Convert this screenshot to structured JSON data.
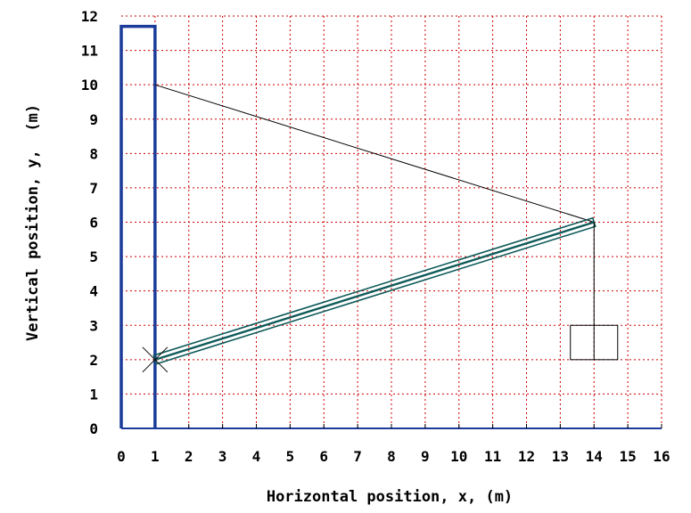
{
  "chart_data": {
    "type": "diagram",
    "xlabel": "Horizontal position, x, (m)",
    "ylabel": "Vertical position, y,  (m)",
    "xlim": [
      0,
      16
    ],
    "ylim": [
      0,
      12
    ],
    "xticks": [
      0,
      1,
      2,
      3,
      4,
      5,
      6,
      7,
      8,
      9,
      10,
      11,
      12,
      13,
      14,
      15,
      16
    ],
    "yticks": [
      0,
      1,
      2,
      3,
      4,
      5,
      6,
      7,
      8,
      9,
      10,
      11,
      12
    ],
    "grid": true,
    "colors": {
      "grid": "#cc0000",
      "wall": "#1a3b9a",
      "beam": "#0f5a5a",
      "cable": "#000000"
    },
    "wall": {
      "x": [
        0,
        1
      ],
      "top": 11.7
    },
    "beam": {
      "from": [
        1,
        2
      ],
      "to": [
        14,
        6
      ]
    },
    "cable": {
      "from": [
        1,
        10
      ],
      "to": [
        14,
        6
      ]
    },
    "hinge": [
      1,
      2
    ],
    "hanger": {
      "from": [
        14,
        6
      ],
      "to": [
        14,
        2
      ]
    },
    "box": {
      "x": [
        13.3,
        14.7
      ],
      "y": [
        2,
        3
      ]
    }
  }
}
